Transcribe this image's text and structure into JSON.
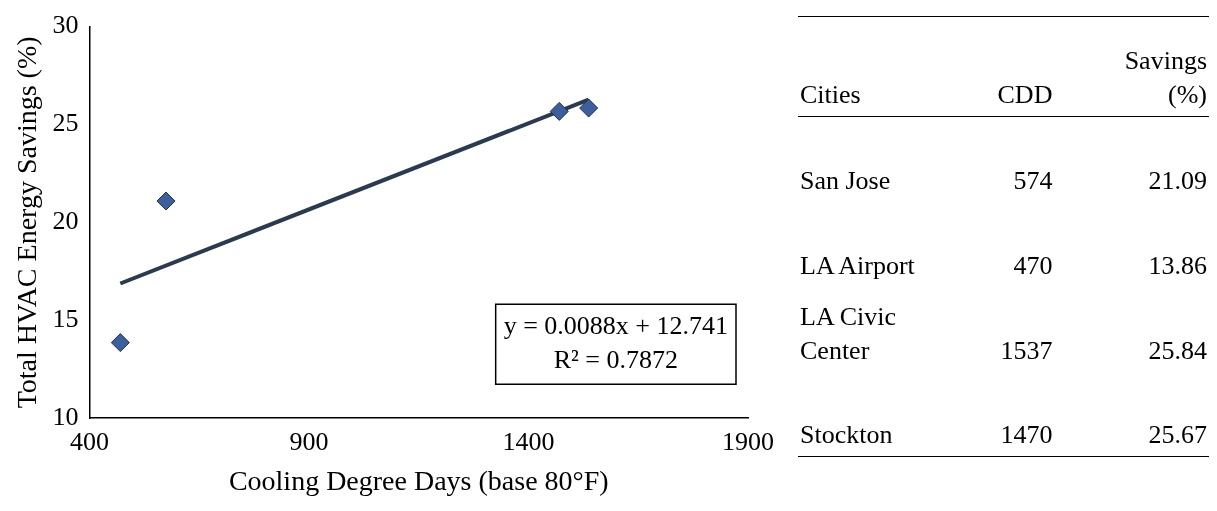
{
  "chart_data": [
    {
      "type": "scatter",
      "xlabel": "Cooling Degree Days (base 80°F)",
      "ylabel": "Total HVAC Energy Savings (%)",
      "xlim": [
        400,
        1900
      ],
      "xticks": [
        400,
        900,
        1400,
        1900
      ],
      "ylim": [
        10,
        30
      ],
      "yticks": [
        10,
        15,
        20,
        25,
        30
      ],
      "grid": false,
      "legend": false,
      "series": [
        {
          "type": "scatter",
          "marker": "diamond",
          "color": "#3d5f9c",
          "x": [
            574,
            470,
            1537,
            1470
          ],
          "values": [
            21.09,
            13.86,
            25.84,
            25.67
          ]
        },
        {
          "type": "line",
          "color": "#2b3a4e",
          "x": [
            470,
            1537
          ],
          "values": [
            16.88,
            26.27
          ],
          "marker": "none",
          "line_style": "solid"
        }
      ],
      "annotations": [
        "y = 0.0088x + 12.741",
        "R² = 0.7872"
      ]
    },
    {
      "type": "other",
      "annotations": [
        "Cities",
        "CDD",
        "Savings (%)",
        "San Jose",
        "574",
        "21.09",
        "LA Airport",
        "470",
        "13.86",
        "LA Civic Center",
        "1537",
        "25.84",
        "Stockton",
        "1470",
        "25.67"
      ]
    }
  ]
}
